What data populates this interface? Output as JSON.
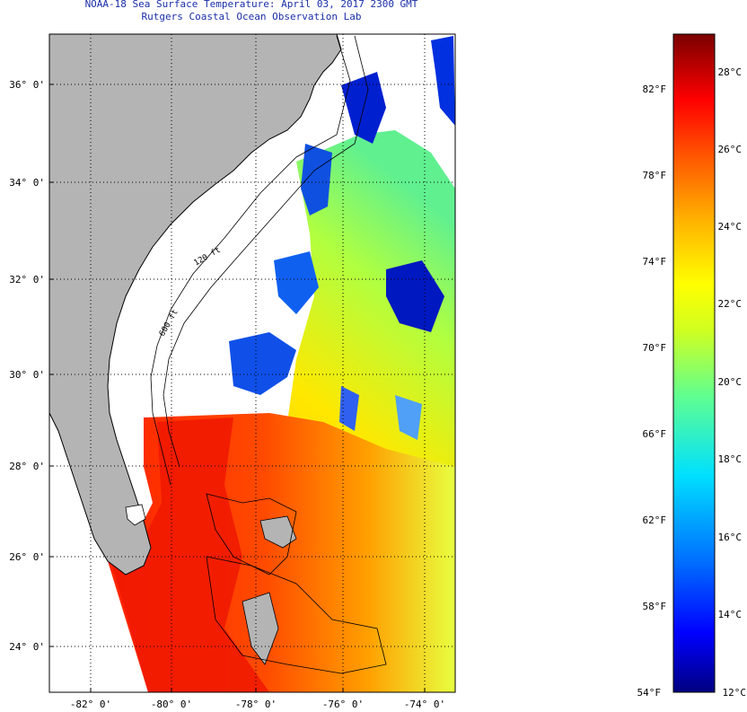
{
  "title": {
    "line1": "NOAA-18 Sea Surface Temperature:  April 03, 2017 2300 GMT",
    "line2": "Rutgers Coastal Ocean Observation Lab"
  },
  "map": {
    "lat_labels": [
      "36° 0'",
      "34° 0'",
      "32° 0'",
      "30° 0'",
      "28° 0'",
      "26° 0'",
      "24° 0'"
    ],
    "lon_labels": [
      "-82° 0'",
      "-80° 0'",
      "-78° 0'",
      "-76° 0'",
      "-74° 0'"
    ],
    "isobath_labels": [
      "120 ft",
      "600 ft"
    ],
    "colors": {
      "land": "#b4b4b4",
      "coast_line": "#000000",
      "grid_dots": "#000000"
    }
  },
  "colorbar": {
    "fahrenheit_labels": [
      "82°F",
      "78°F",
      "74°F",
      "70°F",
      "66°F",
      "62°F",
      "58°F",
      "54°F"
    ],
    "celsius_labels": [
      "28°C",
      "26°C",
      "24°C",
      "22°C",
      "20°C",
      "18°C",
      "16°C",
      "14°C",
      "12°C"
    ],
    "colors": [
      "#000080",
      "#0000ff",
      "#0080ff",
      "#00d8ff",
      "#40ffb0",
      "#a0ff40",
      "#ffff00",
      "#ffb000",
      "#ff6000",
      "#ff0000",
      "#c00000",
      "#800000"
    ]
  }
}
